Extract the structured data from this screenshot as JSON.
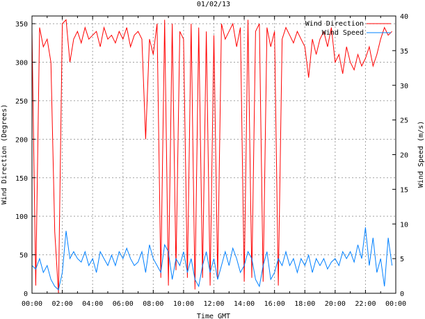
{
  "chart_data": {
    "type": "line",
    "title": "01/02/13",
    "xlabel": "Time GMT",
    "ylabel": "Wind Direction (Degrees)",
    "y2label": "Wind Speed (m/s)",
    "xlim_hours": [
      0,
      24
    ],
    "ylim": [
      0,
      360
    ],
    "y2lim": [
      0,
      40
    ],
    "grid": true,
    "legend_position": "top-right",
    "x_tick_labels": [
      "00:00",
      "02:00",
      "04:00",
      "06:00",
      "08:00",
      "10:00",
      "12:00",
      "14:00",
      "16:00",
      "18:00",
      "20:00",
      "22:00",
      "00:00"
    ],
    "y_ticks": [
      0,
      50,
      100,
      150,
      200,
      250,
      300,
      350
    ],
    "y2_ticks": [
      0,
      5,
      10,
      15,
      20,
      25,
      30,
      35,
      40
    ],
    "time_step_minutes": 15,
    "series": [
      {
        "name": "Wind Direction",
        "axis": "y",
        "color": "#ff0000",
        "values": [
          340,
          10,
          345,
          320,
          330,
          300,
          80,
          0,
          350,
          355,
          300,
          330,
          340,
          325,
          345,
          330,
          335,
          340,
          320,
          345,
          330,
          335,
          325,
          340,
          330,
          345,
          320,
          335,
          340,
          330,
          200,
          330,
          310,
          350,
          20,
          355,
          10,
          350,
          30,
          340,
          330,
          20,
          350,
          5,
          345,
          20,
          340,
          10,
          335,
          20,
          350,
          330,
          340,
          350,
          320,
          345,
          15,
          355,
          20,
          340,
          350,
          15,
          345,
          320,
          340,
          10,
          330,
          345,
          335,
          325,
          340,
          330,
          320,
          280,
          330,
          310,
          330,
          340,
          320,
          345,
          300,
          310,
          285,
          320,
          300,
          290,
          310,
          295,
          305,
          320,
          295,
          310,
          330,
          345,
          335,
          340
        ]
      },
      {
        "name": "Wind Speed",
        "axis": "y2",
        "color": "#0080ff",
        "values": [
          4,
          3.5,
          5,
          3,
          4,
          2,
          1,
          0.5,
          3,
          9,
          5,
          6,
          5,
          4.5,
          6,
          4,
          5,
          3,
          6,
          5,
          4,
          5.5,
          4,
          6,
          5,
          6.5,
          5,
          4,
          4.5,
          6,
          3,
          7,
          5,
          4,
          3,
          7,
          6,
          2,
          5,
          4,
          6,
          3,
          5,
          2,
          1,
          4,
          6,
          3,
          5,
          2,
          4,
          6,
          4,
          6.5,
          5,
          3,
          4,
          6,
          5,
          2,
          1,
          4,
          6,
          2,
          3,
          5,
          4,
          6,
          4,
          5,
          3,
          5,
          4,
          5.5,
          3,
          5,
          4,
          5,
          3.5,
          4.5,
          5,
          4,
          6,
          5,
          6,
          4.5,
          7,
          5,
          9.5,
          4,
          8,
          3,
          5,
          1,
          8,
          4
        ]
      }
    ]
  }
}
